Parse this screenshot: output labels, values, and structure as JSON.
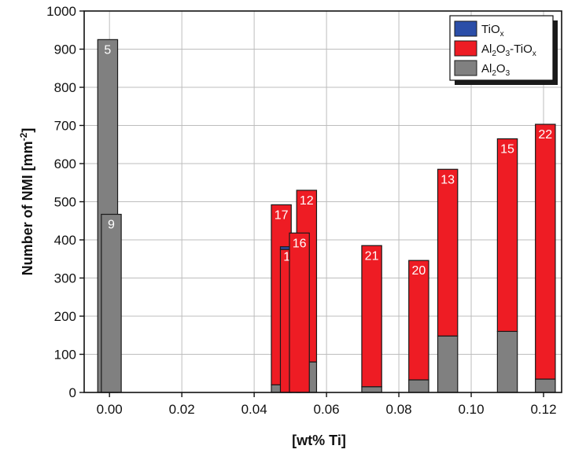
{
  "chart_data": {
    "type": "bar",
    "stacked": true,
    "xlabel": "[wt% Ti]",
    "ylabel": "Number of NMI [mm",
    "ylabel_sup": "-2",
    "ylabel_end": "]",
    "xlim": [
      -0.007,
      0.125
    ],
    "ylim": [
      0,
      1000
    ],
    "xticks": [
      0.0,
      0.02,
      0.04,
      0.06,
      0.08,
      0.1,
      0.12
    ],
    "xtick_labels": [
      "0.00",
      "0.02",
      "0.04",
      "0.06",
      "0.08",
      "0.10",
      "0.12"
    ],
    "yticks": [
      0,
      100,
      200,
      300,
      400,
      500,
      600,
      700,
      800,
      900,
      1000
    ],
    "ytick_labels": [
      "0",
      "100",
      "200",
      "300",
      "400",
      "500",
      "600",
      "700",
      "800",
      "900",
      "1000"
    ],
    "grid": true,
    "legend_position": "top-right",
    "colors": {
      "TiOx": "#2b4ea8",
      "Al2O3_TiOx": "#ee1c24",
      "Al2O3": "#808080"
    },
    "legend": [
      {
        "key": "TiOx",
        "parts": [
          [
            "TiO",
            ""
          ],
          [
            "x",
            "sub"
          ]
        ]
      },
      {
        "key": "Al2O3_TiOx",
        "parts": [
          [
            "Al",
            ""
          ],
          [
            "2",
            "sub"
          ],
          [
            "O",
            ""
          ],
          [
            "3",
            "sub"
          ],
          [
            "-TiO",
            ""
          ],
          [
            "x",
            "sub"
          ]
        ]
      },
      {
        "key": "Al2O3",
        "parts": [
          [
            "Al",
            ""
          ],
          [
            "2",
            "sub"
          ],
          [
            "O",
            ""
          ],
          [
            "3",
            "sub"
          ]
        ]
      }
    ],
    "bar_width": 0.0055,
    "bars": [
      {
        "label": "5",
        "x": -0.0005,
        "Al2O3": 925,
        "Al2O3_TiOx": 0,
        "TiOx": 0
      },
      {
        "label": "9",
        "x": 0.0005,
        "Al2O3": 467,
        "Al2O3_TiOx": 0,
        "TiOx": 0
      },
      {
        "label": "17",
        "x": 0.0475,
        "Al2O3": 20,
        "Al2O3_TiOx": 472,
        "TiOx": 0
      },
      {
        "label": "19",
        "x": 0.05,
        "Al2O3": 0,
        "Al2O3_TiOx": 375,
        "TiOx": 7
      },
      {
        "label": "12",
        "x": 0.0545,
        "Al2O3": 80,
        "Al2O3_TiOx": 450,
        "TiOx": 0
      },
      {
        "label": "16",
        "x": 0.0525,
        "Al2O3": 0,
        "Al2O3_TiOx": 418,
        "TiOx": 0
      },
      {
        "label": "21",
        "x": 0.0725,
        "Al2O3": 15,
        "Al2O3_TiOx": 370,
        "TiOx": 0
      },
      {
        "label": "20",
        "x": 0.0855,
        "Al2O3": 33,
        "Al2O3_TiOx": 313,
        "TiOx": 0
      },
      {
        "label": "13",
        "x": 0.0935,
        "Al2O3": 148,
        "Al2O3_TiOx": 437,
        "TiOx": 0
      },
      {
        "label": "15",
        "x": 0.11,
        "Al2O3": 160,
        "Al2O3_TiOx": 505,
        "TiOx": 0
      },
      {
        "label": "22",
        "x": 0.1205,
        "Al2O3": 35,
        "Al2O3_TiOx": 668,
        "TiOx": 0
      }
    ]
  }
}
